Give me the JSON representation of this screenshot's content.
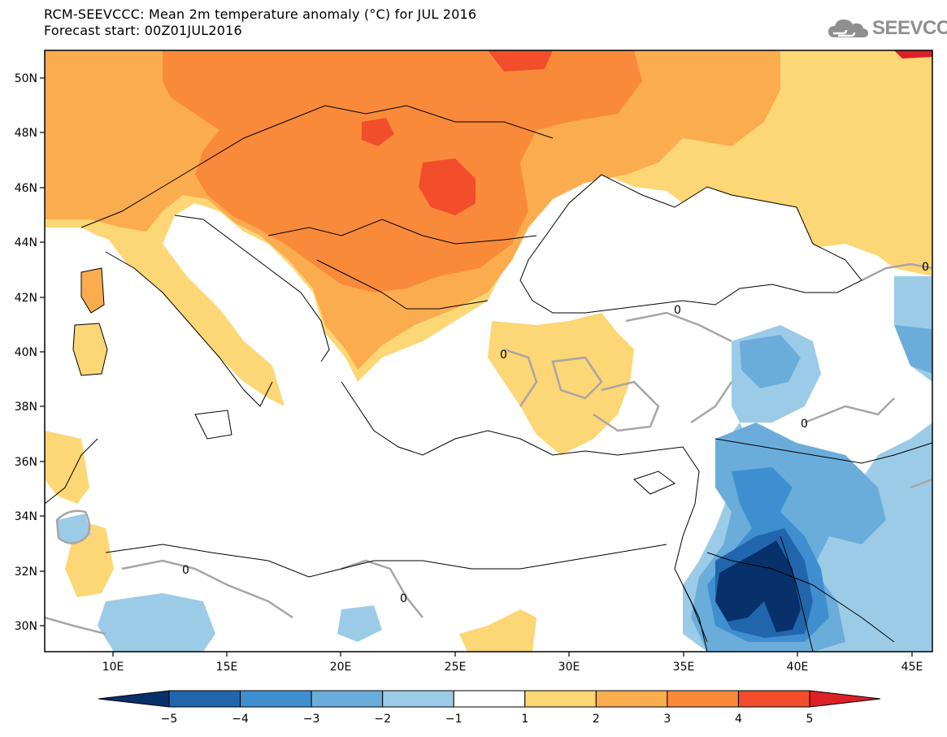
{
  "header": {
    "title_line1": "RCM-SEEVCCC: Mean 2m temperature anomaly (°C) for JUL 2016",
    "title_line2": "Forecast start: 00Z01JUL2016"
  },
  "logo": {
    "text": "SEEVCCC",
    "icon": "cloud-icon"
  },
  "map": {
    "lat_labels": [
      "50N",
      "48N",
      "46N",
      "44N",
      "42N",
      "40N",
      "38N",
      "36N",
      "34N",
      "32N",
      "30N"
    ],
    "lon_labels": [
      "10E",
      "15E",
      "20E",
      "25E",
      "30E",
      "35E",
      "40E",
      "45E"
    ],
    "contour_label": "0"
  },
  "colorbar": {
    "tick_labels": [
      "−5",
      "−4",
      "−3",
      "−2",
      "−1",
      "1",
      "2",
      "3",
      "4",
      "5"
    ],
    "colors": [
      "#08306b",
      "#2166ac",
      "#3f8fd0",
      "#6aaddb",
      "#9ccbe8",
      "#ffffff",
      "#fdd675",
      "#fbac4e",
      "#f98a3a",
      "#f24e2b",
      "#dd1f26"
    ]
  },
  "palette": {
    "anom_1_2": "#fdd675",
    "anom_2_3": "#fbac4e",
    "anom_3_4": "#f98a3a",
    "anom_4_5": "#f24e2b",
    "anom_gt5": "#dd1f26",
    "anom_m1_m2": "#9ccbe8",
    "anom_m2_m3": "#6aaddb",
    "anom_m3_m4": "#3f8fd0",
    "anom_m4_m5": "#2166ac",
    "anom_lt_m5": "#08306b",
    "zero_contour": "#a6a6a6"
  }
}
